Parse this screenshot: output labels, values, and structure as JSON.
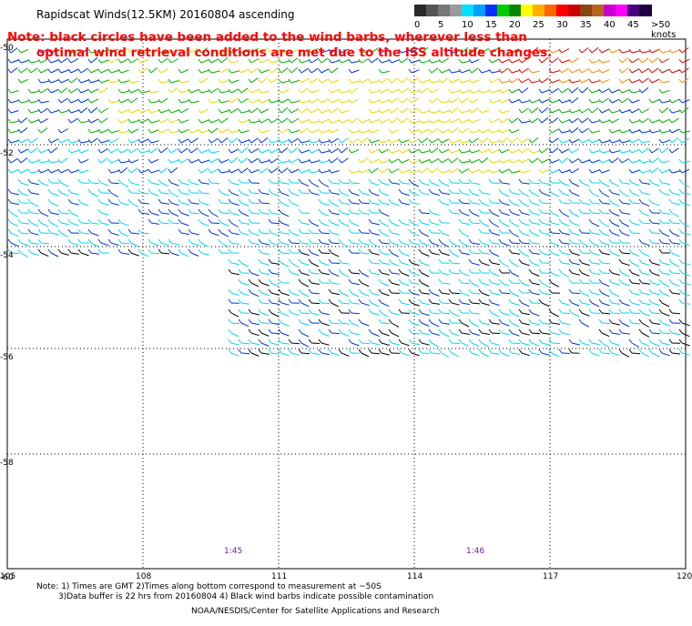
{
  "title": "Rapidscat Winds(12.5KM) 20160804 ascending",
  "warning": {
    "line1": "Note: black circles have been added to the wind barbs, wherever less than",
    "line2": "optimal wind retrieval conditions are met due to the ISS altitude changes."
  },
  "legend": {
    "units": "knots",
    "labels": [
      "0",
      "5",
      "10",
      "15",
      "20",
      "25",
      "30",
      "35",
      "40",
      "45",
      ">50 knots"
    ],
    "colors": [
      "#2a2a2a",
      "#555555",
      "#777777",
      "#9a9a9a",
      "#00e0ff",
      "#00a0ff",
      "#0030ff",
      "#00cc00",
      "#008800",
      "#ffff00",
      "#ffb000",
      "#ff6600",
      "#ff0000",
      "#cc0000",
      "#8b4513",
      "#b5651d",
      "#cc00cc",
      "#ff00ff",
      "#4b0082",
      "#200040"
    ]
  },
  "map": {
    "latitude_labels": [
      "-50",
      "-52",
      "-54",
      "-56",
      "-58",
      "-60"
    ],
    "longitude_labels": [
      "105",
      "108",
      "111",
      "114",
      "117",
      "120"
    ],
    "time_labels": [
      "1:45",
      "1:46"
    ],
    "speed_bands": [
      "cyan",
      "blue",
      "green",
      "yellow",
      "orange",
      "red",
      "black"
    ]
  },
  "notes": {
    "line1": "Note: 1) Times are GMT 2)Times along bottom correspond to measurement at ~50S",
    "line2": "3)Data buffer is 22 hrs from 20160804 4) Black wind barbs indicate possible contamination"
  },
  "credit": "NOAA/NESDIS/Center for Satellite Applications and Research"
}
